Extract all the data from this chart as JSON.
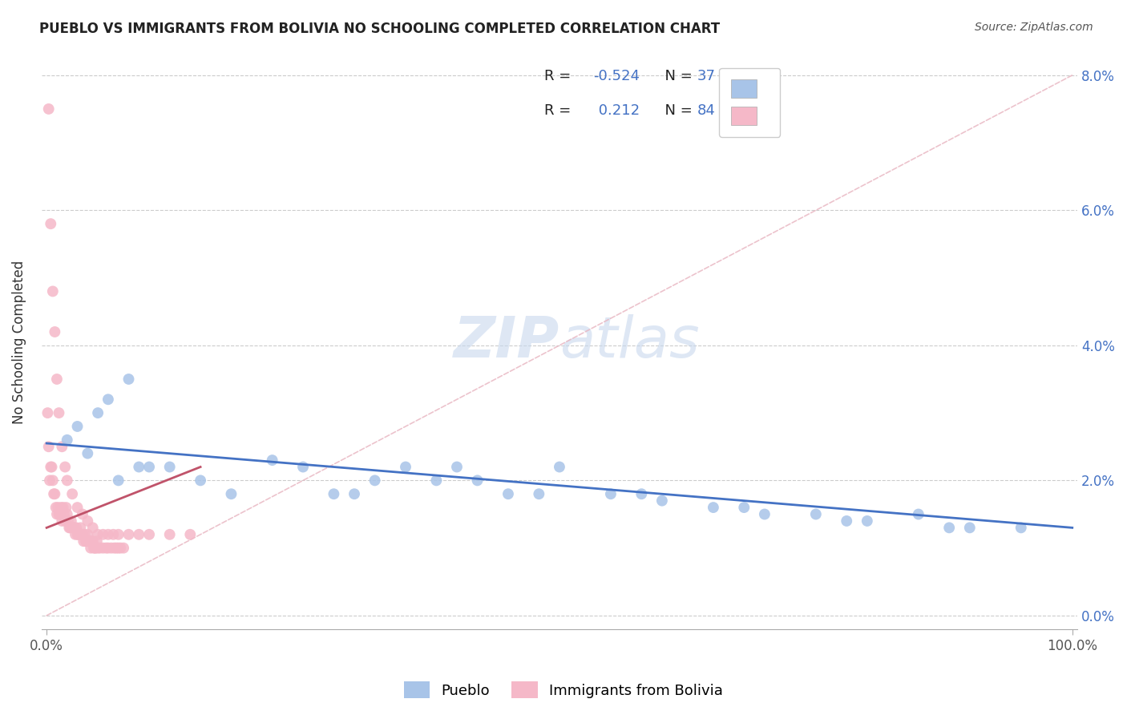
{
  "title": "PUEBLO VS IMMIGRANTS FROM BOLIVIA NO SCHOOLING COMPLETED CORRELATION CHART",
  "source": "Source: ZipAtlas.com",
  "ylabel": "No Schooling Completed",
  "blue_R": -0.524,
  "blue_N": 37,
  "pink_R": 0.212,
  "pink_N": 84,
  "blue_color": "#a8c4e8",
  "pink_color": "#f5b8c8",
  "blue_line_color": "#4472c4",
  "pink_line_color": "#c0536a",
  "diagonal_color": "#e8b4c0",
  "background_color": "#ffffff",
  "watermark_color": "#dce8f5",
  "grid_color": "#cccccc",
  "blue_scatter_x": [
    0.02,
    0.05,
    0.06,
    0.08,
    0.1,
    0.03,
    0.04,
    0.07,
    0.09,
    0.12,
    0.15,
    0.18,
    0.22,
    0.25,
    0.28,
    0.32,
    0.35,
    0.38,
    0.42,
    0.45,
    0.5,
    0.55,
    0.6,
    0.65,
    0.7,
    0.75,
    0.8,
    0.85,
    0.9,
    0.95,
    0.3,
    0.4,
    0.48,
    0.58,
    0.68,
    0.78,
    0.88
  ],
  "blue_scatter_y": [
    0.026,
    0.03,
    0.032,
    0.035,
    0.022,
    0.028,
    0.024,
    0.02,
    0.022,
    0.022,
    0.02,
    0.018,
    0.023,
    0.022,
    0.018,
    0.02,
    0.022,
    0.02,
    0.02,
    0.018,
    0.022,
    0.018,
    0.017,
    0.016,
    0.015,
    0.015,
    0.014,
    0.015,
    0.013,
    0.013,
    0.018,
    0.022,
    0.018,
    0.018,
    0.016,
    0.014,
    0.013
  ],
  "pink_scatter_x": [
    0.001,
    0.002,
    0.003,
    0.004,
    0.005,
    0.006,
    0.007,
    0.008,
    0.009,
    0.01,
    0.011,
    0.012,
    0.013,
    0.014,
    0.015,
    0.016,
    0.017,
    0.018,
    0.019,
    0.02,
    0.021,
    0.022,
    0.023,
    0.024,
    0.025,
    0.026,
    0.027,
    0.028,
    0.029,
    0.03,
    0.031,
    0.032,
    0.033,
    0.034,
    0.035,
    0.036,
    0.037,
    0.038,
    0.039,
    0.04,
    0.041,
    0.042,
    0.043,
    0.044,
    0.045,
    0.046,
    0.047,
    0.048,
    0.049,
    0.05,
    0.052,
    0.055,
    0.058,
    0.06,
    0.063,
    0.066,
    0.068,
    0.07,
    0.072,
    0.075,
    0.002,
    0.004,
    0.006,
    0.008,
    0.01,
    0.012,
    0.015,
    0.018,
    0.02,
    0.025,
    0.03,
    0.035,
    0.04,
    0.045,
    0.05,
    0.055,
    0.06,
    0.065,
    0.07,
    0.08,
    0.09,
    0.1,
    0.12,
    0.14
  ],
  "pink_scatter_y": [
    0.03,
    0.025,
    0.02,
    0.022,
    0.022,
    0.02,
    0.018,
    0.018,
    0.016,
    0.015,
    0.016,
    0.015,
    0.015,
    0.016,
    0.014,
    0.016,
    0.015,
    0.014,
    0.016,
    0.015,
    0.014,
    0.013,
    0.013,
    0.014,
    0.013,
    0.013,
    0.013,
    0.012,
    0.013,
    0.012,
    0.012,
    0.012,
    0.013,
    0.012,
    0.012,
    0.011,
    0.012,
    0.011,
    0.011,
    0.012,
    0.011,
    0.011,
    0.01,
    0.011,
    0.011,
    0.01,
    0.01,
    0.01,
    0.011,
    0.01,
    0.01,
    0.01,
    0.01,
    0.01,
    0.01,
    0.01,
    0.01,
    0.01,
    0.01,
    0.01,
    0.075,
    0.058,
    0.048,
    0.042,
    0.035,
    0.03,
    0.025,
    0.022,
    0.02,
    0.018,
    0.016,
    0.015,
    0.014,
    0.013,
    0.012,
    0.012,
    0.012,
    0.012,
    0.012,
    0.012,
    0.012,
    0.012,
    0.012,
    0.012
  ]
}
